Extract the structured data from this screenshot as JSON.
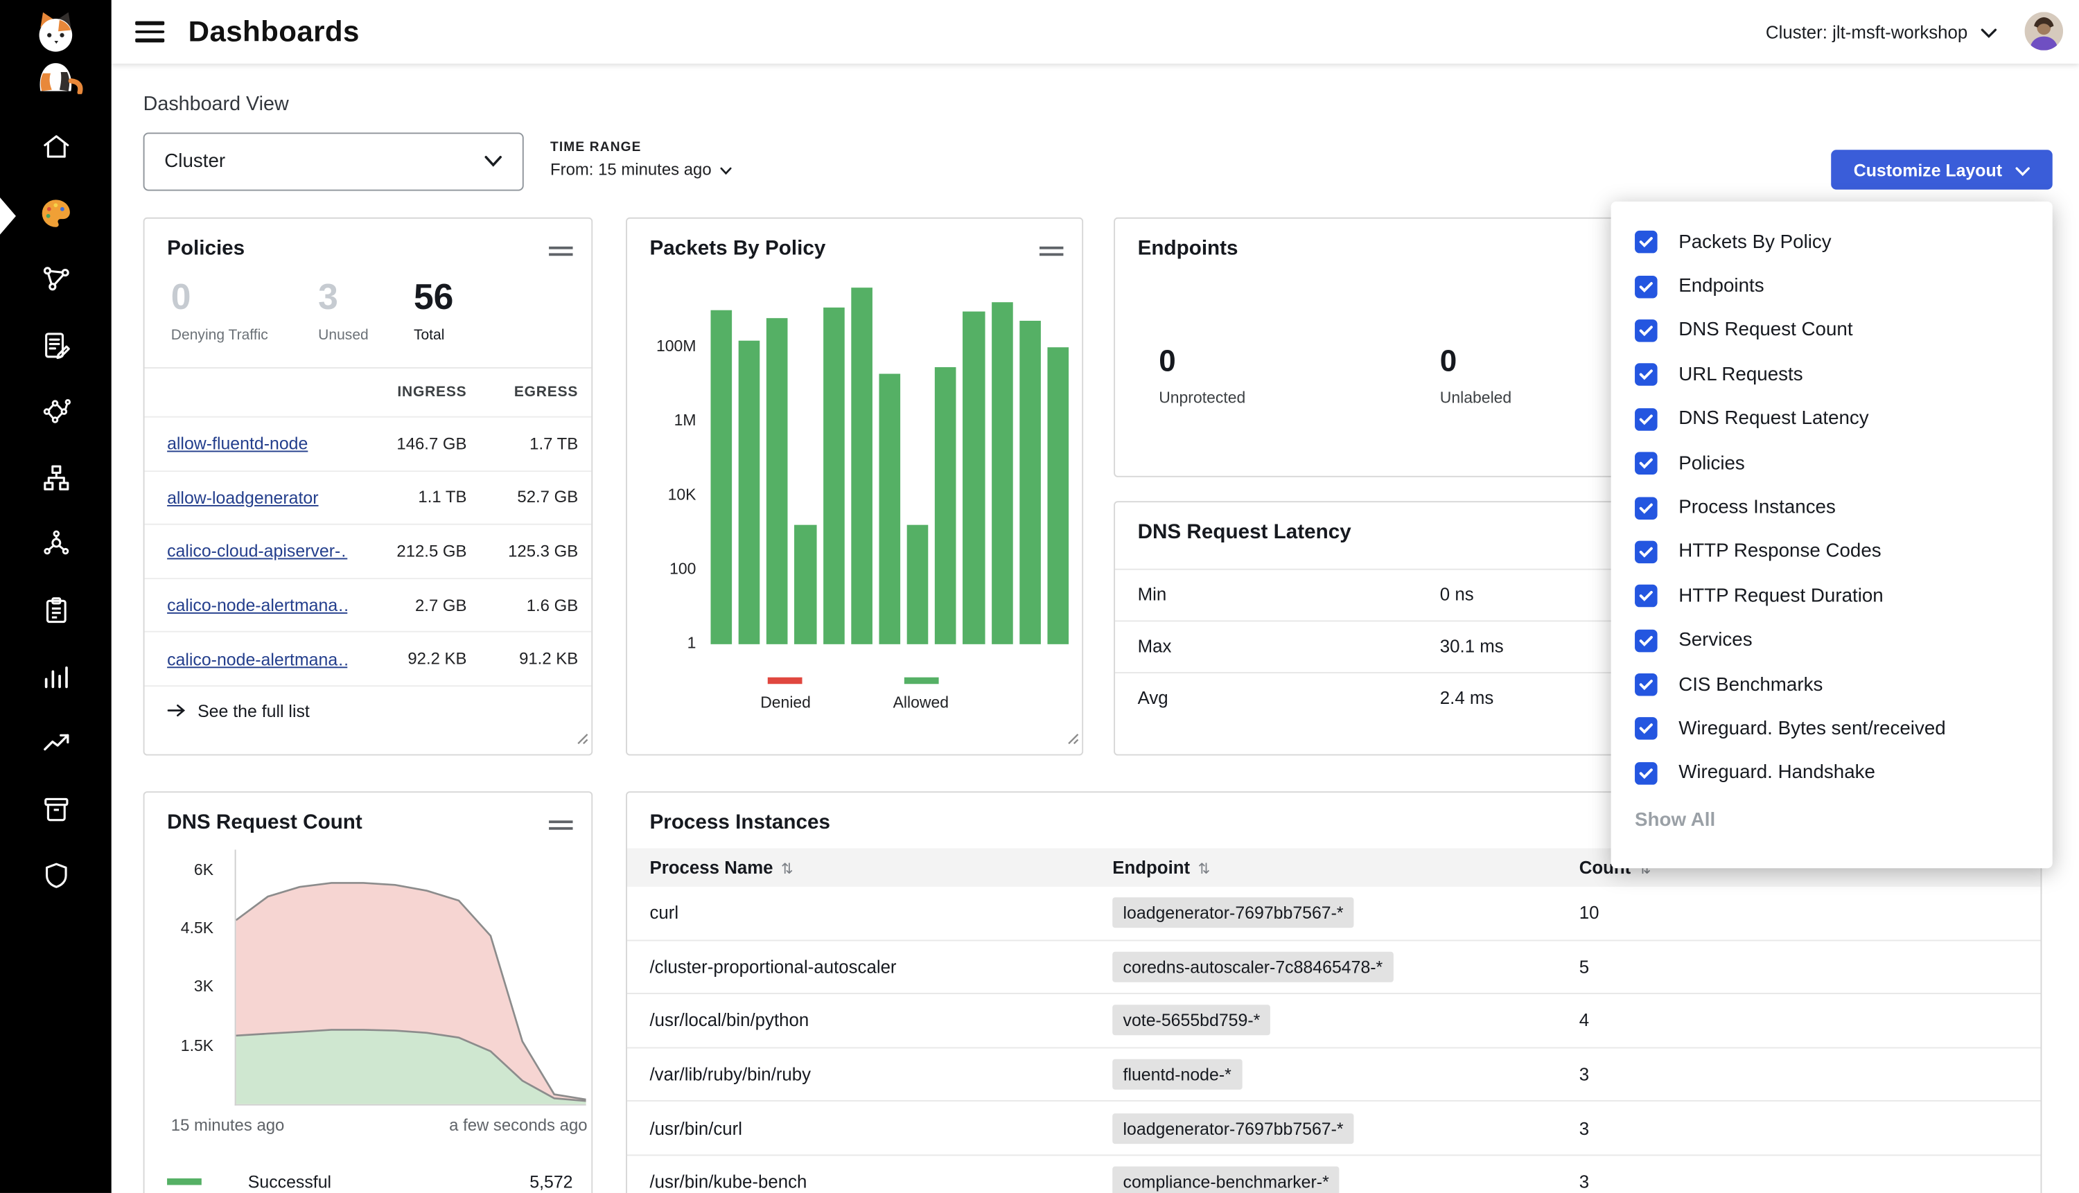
{
  "colors": {
    "accent_blue": "#3a5dd9",
    "checkbox_blue": "#2456e0",
    "bar_green": "#55b065",
    "denied_red": "#e0473f",
    "link_blue": "#233e8c",
    "sidebar_bg": "#000000"
  },
  "sidebar": {
    "icons": [
      "calico-cat-logo",
      "home-icon",
      "dashboards-palette-icon",
      "service-graph-icon",
      "policies-pen-icon",
      "flow-visualization-icon",
      "hierarchy-icon",
      "cluster-network-icon",
      "compliance-clipboard-icon",
      "activity-bars-icon",
      "trend-up-icon",
      "storage-archive-icon",
      "shield-icon"
    ],
    "active_item": "dashboards"
  },
  "header": {
    "title": "Dashboards",
    "cluster_label": "Cluster: jlt-msft-workshop"
  },
  "toolbar": {
    "section_label": "Dashboard View",
    "view_select_value": "Cluster",
    "time_range_label": "TIME RANGE",
    "time_range_value": "From: 15 minutes ago",
    "customize_button": "Customize Layout"
  },
  "policies_card": {
    "title": "Policies",
    "stats": [
      {
        "value": "0",
        "label": "Denying Traffic"
      },
      {
        "value": "3",
        "label": "Unused"
      },
      {
        "value": "56",
        "label": "Total"
      }
    ],
    "columns": [
      "INGRESS",
      "EGRESS"
    ],
    "rows": [
      {
        "name": "allow-fluentd-node",
        "ingress": "146.7 GB",
        "egress": "1.7 TB"
      },
      {
        "name": "allow-loadgenerator",
        "ingress": "1.1 TB",
        "egress": "52.7 GB"
      },
      {
        "name": "calico-cloud-apiserver-…",
        "ingress": "212.5 GB",
        "egress": "125.3 GB"
      },
      {
        "name": "calico-node-alertmana…",
        "ingress": "2.7 GB",
        "egress": "1.6 GB"
      },
      {
        "name": "calico-node-alertmana…",
        "ingress": "92.2 KB",
        "egress": "91.2 KB"
      }
    ],
    "see_full_list": "See the full list"
  },
  "packets_card": {
    "title": "Packets By Policy"
  },
  "endpoints_card": {
    "title": "Endpoints",
    "stats": [
      {
        "value": "0",
        "label": "Unprotected"
      },
      {
        "value": "0",
        "label": "Unlabeled"
      }
    ]
  },
  "dns_latency_card": {
    "title": "DNS Request Latency",
    "rows": [
      {
        "label": "Min",
        "value": "0 ns"
      },
      {
        "label": "Max",
        "value": "30.1 ms"
      },
      {
        "label": "Avg",
        "value": "2.4 ms"
      }
    ]
  },
  "dns_count_card": {
    "title": "DNS Request Count"
  },
  "process_card": {
    "title": "Process Instances",
    "columns": [
      "Process Name",
      "Endpoint",
      "Count"
    ],
    "rows": [
      {
        "process": "curl",
        "endpoint": "loadgenerator-7697bb7567-*",
        "count": "10"
      },
      {
        "process": "/cluster-proportional-autoscaler",
        "endpoint": "coredns-autoscaler-7c88465478-*",
        "count": "5"
      },
      {
        "process": "/usr/local/bin/python",
        "endpoint": "vote-5655bd759-*",
        "count": "4"
      },
      {
        "process": "/var/lib/ruby/bin/ruby",
        "endpoint": "fluentd-node-*",
        "count": "3"
      },
      {
        "process": "/usr/bin/curl",
        "endpoint": "loadgenerator-7697bb7567-*",
        "count": "3"
      },
      {
        "process": "/usr/bin/kube-bench",
        "endpoint": "compliance-benchmarker-*",
        "count": "3"
      }
    ]
  },
  "customize_menu": {
    "items": [
      "Packets By Policy",
      "Endpoints",
      "DNS Request Count",
      "URL Requests",
      "DNS Request Latency",
      "Policies",
      "Process Instances",
      "HTTP Response Codes",
      "HTTP Request Duration",
      "Services",
      "CIS Benchmarks",
      "Wireguard. Bytes sent/received",
      "Wireguard. Handshake"
    ],
    "show_all": "Show All"
  },
  "chart_data": [
    {
      "id": "packets_by_policy",
      "type": "bar",
      "title": "Packets By Policy",
      "y_scale": "log",
      "y_domain": [
        1,
        10000000000
      ],
      "y_ticks": [
        {
          "label": "1",
          "decade": 0
        },
        {
          "label": "100",
          "decade": 2
        },
        {
          "label": "10K",
          "decade": 4
        },
        {
          "label": "1M",
          "decade": 6
        },
        {
          "label": "100M",
          "decade": 8
        }
      ],
      "bar_color": "#55b065",
      "values": [
        1000000000,
        150000000,
        600000000,
        1600,
        1200000000,
        4000000000,
        20000000,
        1600,
        30000000,
        900000000,
        1600000000,
        500000000,
        100000000
      ],
      "legend": [
        {
          "label": "Denied",
          "color": "#e0473f"
        },
        {
          "label": "Allowed",
          "color": "#55b065"
        }
      ]
    },
    {
      "id": "dns_request_count",
      "type": "area",
      "title": "DNS Request Count",
      "y_max": 6500,
      "y_ticks": [
        {
          "label": "1.5K",
          "value": 1500
        },
        {
          "label": "3K",
          "value": 3000
        },
        {
          "label": "4.5K",
          "value": 4500
        },
        {
          "label": "6K",
          "value": 6000
        }
      ],
      "x_labels": [
        "15 minutes ago",
        "a few seconds ago"
      ],
      "series": [
        {
          "name": "",
          "fill": "#f6d5d2",
          "line": "#8c8c8c",
          "values": [
            4700,
            5300,
            5550,
            5650,
            5650,
            5600,
            5450,
            5200,
            4300,
            1600,
            250,
            120
          ]
        },
        {
          "name": "Successful",
          "fill": "#cfe7d0",
          "line": "#8c8c8c",
          "values": [
            1750,
            1800,
            1850,
            1900,
            1900,
            1880,
            1820,
            1700,
            1350,
            600,
            150,
            80
          ]
        }
      ],
      "legend": [
        {
          "label": "Successful",
          "value": "5,572",
          "color": "#55b065"
        }
      ]
    }
  ]
}
